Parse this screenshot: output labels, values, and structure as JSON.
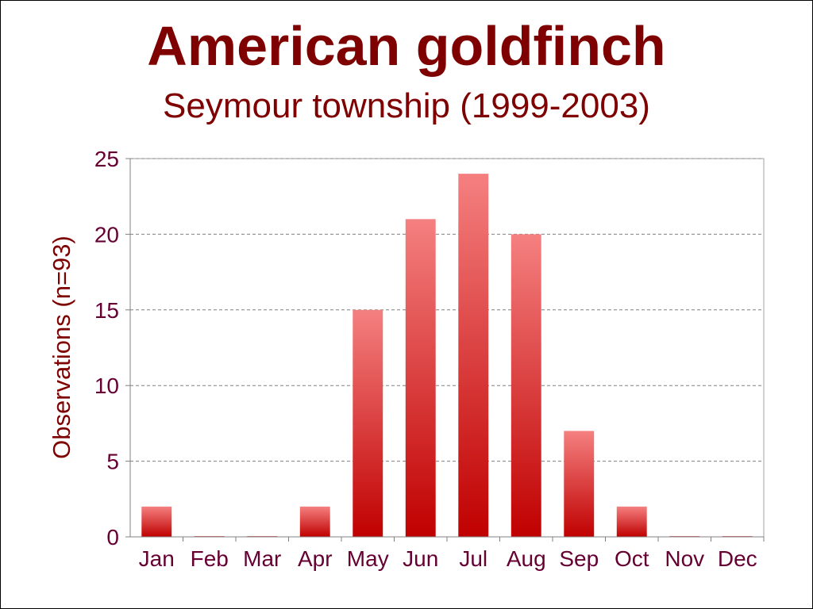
{
  "chart_data": {
    "type": "bar",
    "title": "American goldfinch",
    "subtitle": "Seymour township (1999-2003)",
    "xlabel": "",
    "ylabel": "Observations (n=93)",
    "categories": [
      "Jan",
      "Feb",
      "Mar",
      "Apr",
      "May",
      "Jun",
      "Jul",
      "Aug",
      "Sep",
      "Oct",
      "Nov",
      "Dec"
    ],
    "values": [
      2,
      0,
      0,
      2,
      15,
      21,
      24,
      20,
      7,
      2,
      0,
      0
    ],
    "ylim": [
      0,
      25
    ],
    "yticks": [
      "0",
      "5",
      "10",
      "15",
      "20",
      "25"
    ],
    "grid": true,
    "colors": {
      "title": "#7f0000",
      "tick_labels": "#660033",
      "bar_top": "#f58080",
      "bar_bottom": "#c00000",
      "grid": "#808080"
    }
  }
}
